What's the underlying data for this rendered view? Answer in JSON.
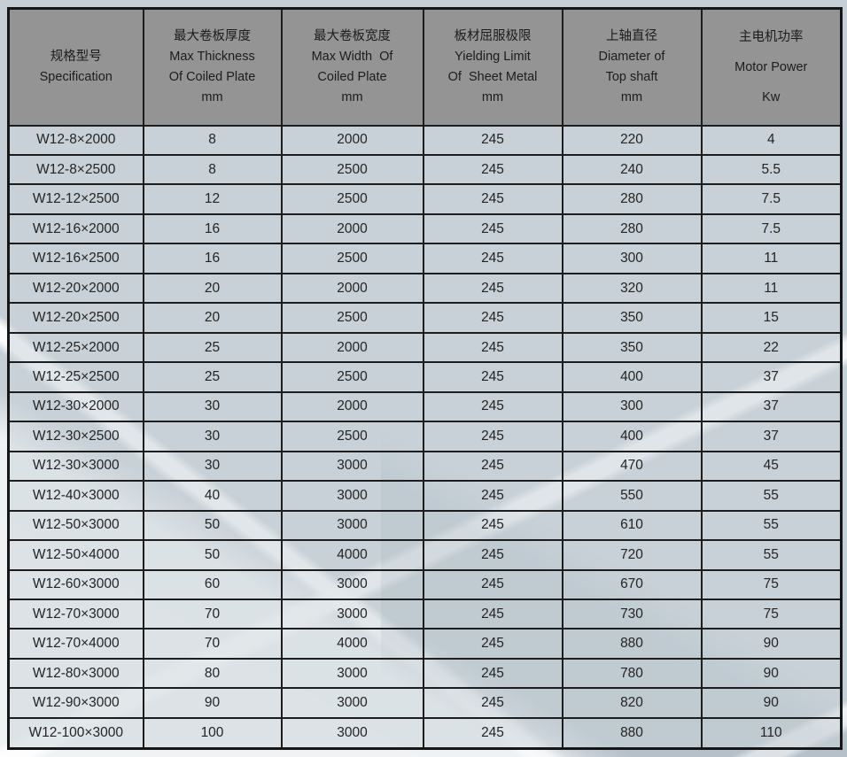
{
  "table": {
    "column_keys": [
      "specification",
      "max_thickness",
      "max_width",
      "yielding_limit",
      "top_shaft_diameter",
      "motor_power"
    ],
    "headers": [
      {
        "key": "specification",
        "text": "规格型号\nSpecification"
      },
      {
        "key": "max_thickness",
        "text": "最大卷板厚度\nMax Thickness\nOf Coiled Plate\nmm"
      },
      {
        "key": "max_width",
        "text": "最大卷板宽度\nMax Width  Of\nCoiled Plate\nmm"
      },
      {
        "key": "yielding_limit",
        "text": "板材屈服极限\nYielding Limit\nOf  Sheet Metal\nmm"
      },
      {
        "key": "top_shaft_diameter",
        "text": "上轴直径\nDiameter of\nTop shaft\nmm"
      },
      {
        "key": "motor_power",
        "text": "主电机功率\nMotor Power\nKw"
      }
    ],
    "rows": [
      [
        "W12-8×2000",
        "8",
        "2000",
        "245",
        "220",
        "4"
      ],
      [
        "W12-8×2500",
        "8",
        "2500",
        "245",
        "240",
        "5.5"
      ],
      [
        "W12-12×2500",
        "12",
        "2500",
        "245",
        "280",
        "7.5"
      ],
      [
        "W12-16×2000",
        "16",
        "2000",
        "245",
        "280",
        "7.5"
      ],
      [
        "W12-16×2500",
        "16",
        "2500",
        "245",
        "300",
        "11"
      ],
      [
        "W12-20×2000",
        "20",
        "2000",
        "245",
        "320",
        "11"
      ],
      [
        "W12-20×2500",
        "20",
        "2500",
        "245",
        "350",
        "15"
      ],
      [
        "W12-25×2000",
        "25",
        "2000",
        "245",
        "350",
        "22"
      ],
      [
        "W12-25×2500",
        "25",
        "2500",
        "245",
        "400",
        "37"
      ],
      [
        "W12-30×2000",
        "30",
        "2000",
        "245",
        "300",
        "37"
      ],
      [
        "W12-30×2500",
        "30",
        "2500",
        "245",
        "400",
        "37"
      ],
      [
        "W12-30×3000",
        "30",
        "3000",
        "245",
        "470",
        "45"
      ],
      [
        "W12-40×3000",
        "40",
        "3000",
        "245",
        "550",
        "55"
      ],
      [
        "W12-50×3000",
        "50",
        "3000",
        "245",
        "610",
        "55"
      ],
      [
        "W12-50×4000",
        "50",
        "4000",
        "245",
        "720",
        "55"
      ],
      [
        "W12-60×3000",
        "60",
        "3000",
        "245",
        "670",
        "75"
      ],
      [
        "W12-70×3000",
        "70",
        "3000",
        "245",
        "730",
        "75"
      ],
      [
        "W12-70×4000",
        "70",
        "4000",
        "245",
        "880",
        "90"
      ],
      [
        "W12-80×3000",
        "80",
        "3000",
        "245",
        "780",
        "90"
      ],
      [
        "W12-90×3000",
        "90",
        "3000",
        "245",
        "820",
        "90"
      ],
      [
        "W12-100×3000",
        "100",
        "3000",
        "245",
        "880",
        "110"
      ]
    ]
  },
  "colors": {
    "header_bg": "#949494",
    "cell_bg": "#c9d2d8",
    "grid_border": "#1d1d1d",
    "page_bg": "#c6cfd6",
    "text": "#242424",
    "streak": "#ffffff"
  }
}
